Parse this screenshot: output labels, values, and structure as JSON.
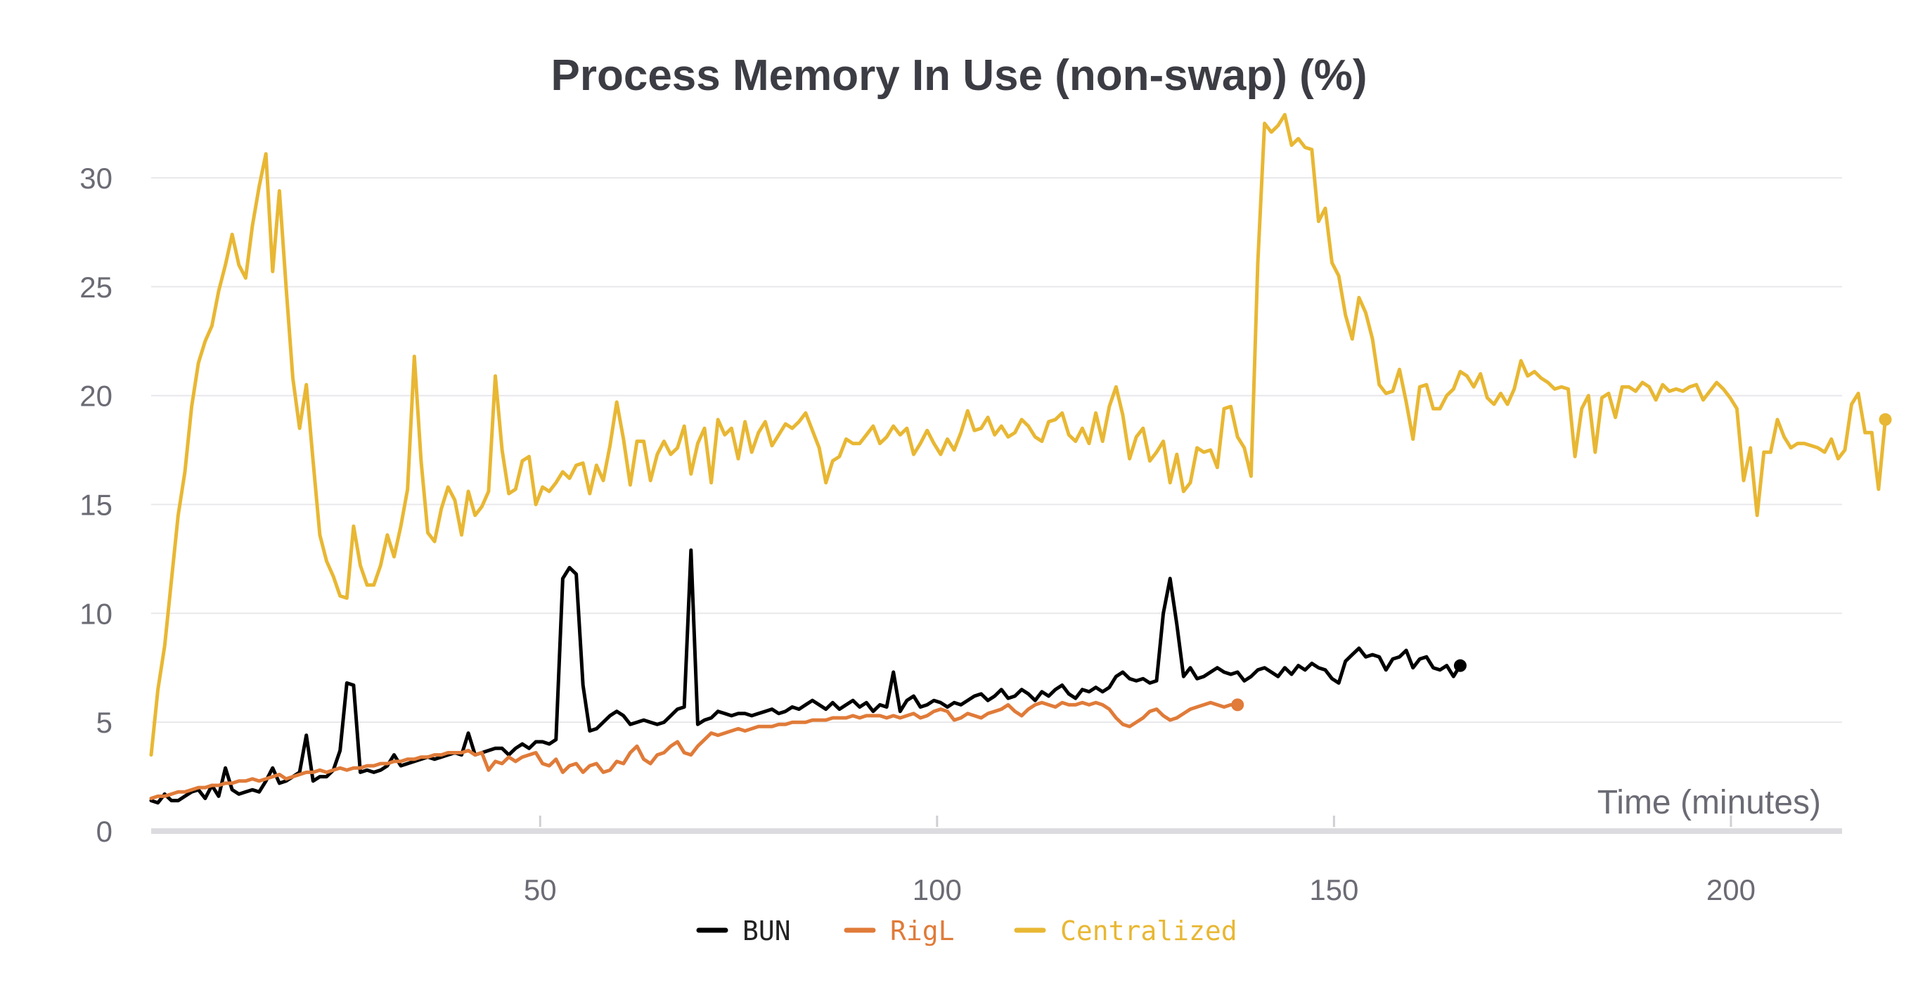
{
  "chart_data": {
    "type": "line",
    "title": "Process Memory In Use (non-swap) (%)",
    "xlabel": "Time (minutes)",
    "ylabel": "",
    "xlim": [
      1,
      214
    ],
    "ylim": [
      0,
      33
    ],
    "x_ticks": [
      50,
      100,
      150,
      200
    ],
    "y_ticks": [
      0,
      5,
      10,
      15,
      20,
      25,
      30
    ],
    "grid": true,
    "legend_position": "bottom-center",
    "series": [
      {
        "name": "BUN",
        "color": "#000000",
        "x_start": 1,
        "x_step": 0.85,
        "values": [
          1.4,
          1.3,
          1.7,
          1.4,
          1.4,
          1.6,
          1.8,
          1.9,
          1.5,
          2.1,
          1.6,
          2.9,
          1.9,
          1.7,
          1.8,
          1.9,
          1.8,
          2.3,
          2.9,
          2.2,
          2.3,
          2.5,
          2.7,
          4.4,
          2.3,
          2.5,
          2.5,
          2.8,
          3.7,
          6.8,
          6.7,
          2.7,
          2.8,
          2.7,
          2.8,
          3.0,
          3.5,
          3.0,
          3.1,
          3.2,
          3.3,
          3.4,
          3.3,
          3.4,
          3.5,
          3.6,
          3.5,
          4.5,
          3.5,
          3.6,
          3.7,
          3.8,
          3.8,
          3.5,
          3.8,
          4.0,
          3.8,
          4.1,
          4.1,
          4.0,
          4.2,
          11.6,
          12.1,
          11.8,
          6.7,
          4.6,
          4.7,
          5.0,
          5.3,
          5.5,
          5.3,
          4.9,
          5.0,
          5.1,
          5.0,
          4.9,
          5.0,
          5.3,
          5.6,
          5.7,
          12.9,
          4.9,
          5.1,
          5.2,
          5.5,
          5.4,
          5.3,
          5.4,
          5.4,
          5.3,
          5.4,
          5.5,
          5.6,
          5.4,
          5.5,
          5.7,
          5.6,
          5.8,
          6.0,
          5.8,
          5.6,
          5.9,
          5.6,
          5.8,
          6.0,
          5.7,
          5.9,
          5.5,
          5.8,
          5.7,
          7.3,
          5.5,
          6.0,
          6.2,
          5.7,
          5.8,
          6.0,
          5.9,
          5.7,
          5.9,
          5.8,
          6.0,
          6.2,
          6.3,
          6.0,
          6.2,
          6.5,
          6.1,
          6.2,
          6.5,
          6.3,
          6.0,
          6.4,
          6.2,
          6.5,
          6.7,
          6.3,
          6.1,
          6.5,
          6.4,
          6.6,
          6.4,
          6.6,
          7.1,
          7.3,
          7.0,
          6.9,
          7.0,
          6.8,
          6.9,
          10.0,
          11.6,
          9.5,
          7.1,
          7.5,
          7.0,
          7.1,
          7.3,
          7.5,
          7.3,
          7.2,
          7.3,
          6.9,
          7.1,
          7.4,
          7.5,
          7.3,
          7.1,
          7.5,
          7.2,
          7.6,
          7.4,
          7.7,
          7.5,
          7.4,
          7.0,
          6.8,
          7.8,
          8.1,
          8.4,
          8.0,
          8.1,
          8.0,
          7.4,
          7.9,
          8.0,
          8.3,
          7.5,
          7.9,
          8.0,
          7.5,
          7.4,
          7.6,
          7.1,
          7.6
        ],
        "end_marker": true
      },
      {
        "name": "RigL",
        "color": "#e07b39",
        "x_start": 1,
        "x_step": 0.85,
        "values": [
          1.5,
          1.6,
          1.6,
          1.7,
          1.8,
          1.8,
          1.9,
          2.0,
          2.0,
          2.1,
          2.1,
          2.2,
          2.2,
          2.3,
          2.3,
          2.4,
          2.3,
          2.4,
          2.5,
          2.6,
          2.4,
          2.5,
          2.6,
          2.7,
          2.7,
          2.8,
          2.7,
          2.8,
          2.9,
          2.8,
          2.9,
          2.9,
          3.0,
          3.0,
          3.1,
          3.1,
          3.2,
          3.2,
          3.3,
          3.3,
          3.4,
          3.4,
          3.5,
          3.5,
          3.6,
          3.6,
          3.6,
          3.7,
          3.5,
          3.6,
          2.8,
          3.2,
          3.1,
          3.4,
          3.2,
          3.4,
          3.5,
          3.6,
          3.1,
          3.0,
          3.3,
          2.7,
          3.0,
          3.1,
          2.7,
          3.0,
          3.1,
          2.7,
          2.8,
          3.2,
          3.1,
          3.6,
          3.9,
          3.3,
          3.1,
          3.5,
          3.6,
          3.9,
          4.1,
          3.6,
          3.5,
          3.9,
          4.2,
          4.5,
          4.4,
          4.5,
          4.6,
          4.7,
          4.6,
          4.7,
          4.8,
          4.8,
          4.8,
          4.9,
          4.9,
          5.0,
          5.0,
          5.0,
          5.1,
          5.1,
          5.1,
          5.2,
          5.2,
          5.2,
          5.3,
          5.2,
          5.3,
          5.3,
          5.3,
          5.2,
          5.3,
          5.2,
          5.3,
          5.4,
          5.2,
          5.3,
          5.5,
          5.6,
          5.5,
          5.1,
          5.2,
          5.4,
          5.3,
          5.2,
          5.4,
          5.5,
          5.6,
          5.8,
          5.5,
          5.3,
          5.6,
          5.8,
          5.9,
          5.8,
          5.7,
          5.9,
          5.8,
          5.8,
          5.9,
          5.8,
          5.9,
          5.8,
          5.6,
          5.2,
          4.9,
          4.8,
          5.0,
          5.2,
          5.5,
          5.6,
          5.3,
          5.1,
          5.2,
          5.4,
          5.6,
          5.7,
          5.8,
          5.9,
          5.8,
          5.7,
          5.8,
          5.8
        ],
        "end_marker": true
      },
      {
        "name": "Centralized",
        "color": "#e8b733",
        "x_start": 1,
        "x_step": 0.85,
        "values": [
          3.5,
          6.5,
          8.5,
          11.5,
          14.5,
          16.5,
          19.5,
          21.5,
          22.5,
          23.2,
          24.8,
          26.0,
          27.4,
          26.0,
          25.4,
          27.8,
          29.6,
          31.1,
          25.7,
          29.4,
          25.0,
          20.8,
          18.5,
          20.5,
          17.0,
          13.6,
          12.4,
          11.7,
          10.8,
          10.7,
          14.0,
          12.2,
          11.3,
          11.3,
          12.2,
          13.6,
          12.6,
          14.0,
          15.7,
          21.8,
          17.0,
          13.7,
          13.3,
          14.8,
          15.8,
          15.2,
          13.6,
          15.6,
          14.5,
          14.9,
          15.6,
          20.9,
          17.5,
          15.5,
          15.7,
          17.0,
          17.2,
          15.0,
          15.8,
          15.6,
          16.0,
          16.5,
          16.2,
          16.8,
          16.9,
          15.5,
          16.8,
          16.1,
          17.7,
          19.7,
          18.0,
          15.9,
          17.9,
          17.9,
          16.1,
          17.3,
          17.9,
          17.3,
          17.6,
          18.6,
          16.4,
          17.8,
          18.5,
          16.0,
          18.9,
          18.2,
          18.5,
          17.1,
          18.8,
          17.4,
          18.3,
          18.8,
          17.7,
          18.2,
          18.7,
          18.5,
          18.8,
          19.2,
          18.4,
          17.6,
          16.0,
          17.0,
          17.2,
          18.0,
          17.8,
          17.8,
          18.2,
          18.6,
          17.8,
          18.1,
          18.6,
          18.2,
          18.5,
          17.3,
          17.8,
          18.4,
          17.8,
          17.3,
          18.0,
          17.5,
          18.3,
          19.3,
          18.4,
          18.5,
          19.0,
          18.2,
          18.6,
          18.1,
          18.3,
          18.9,
          18.6,
          18.1,
          17.9,
          18.8,
          18.9,
          19.2,
          18.2,
          17.9,
          18.5,
          17.8,
          19.2,
          17.9,
          19.5,
          20.4,
          19.1,
          17.1,
          18.1,
          18.5,
          17.0,
          17.4,
          17.9,
          16.0,
          17.3,
          15.6,
          16.0,
          17.6,
          17.4,
          17.5,
          16.7,
          19.4,
          19.5,
          18.1,
          17.6,
          16.3,
          26.1,
          32.5,
          32.1,
          32.4,
          32.9,
          31.5,
          31.8,
          31.4,
          31.3,
          28.0,
          28.6,
          26.1,
          25.5,
          23.7,
          22.6,
          24.5,
          23.8,
          22.6,
          20.5,
          20.1,
          20.2,
          21.2,
          19.7,
          18.0,
          20.4,
          20.5,
          19.4,
          19.4,
          20.0,
          20.3,
          21.1,
          20.9,
          20.4,
          21.0,
          19.9,
          19.6,
          20.1,
          19.6,
          20.3,
          21.6,
          20.9,
          21.1,
          20.8,
          20.6,
          20.3,
          20.4,
          20.3,
          17.2,
          19.4,
          20.0,
          17.4,
          19.9,
          20.1,
          19.0,
          20.4,
          20.4,
          20.2,
          20.6,
          20.4,
          19.8,
          20.5,
          20.2,
          20.3,
          20.2,
          20.4,
          20.5,
          19.8,
          20.2,
          20.6,
          20.3,
          19.9,
          19.4,
          16.1,
          17.6,
          14.5,
          17.4,
          17.4,
          18.9,
          18.1,
          17.6,
          17.8,
          17.8,
          17.7,
          17.6,
          17.4,
          18.0,
          17.1,
          17.5,
          19.6,
          20.1,
          18.3,
          18.3,
          15.7,
          18.9
        ],
        "end_marker": true
      }
    ]
  }
}
